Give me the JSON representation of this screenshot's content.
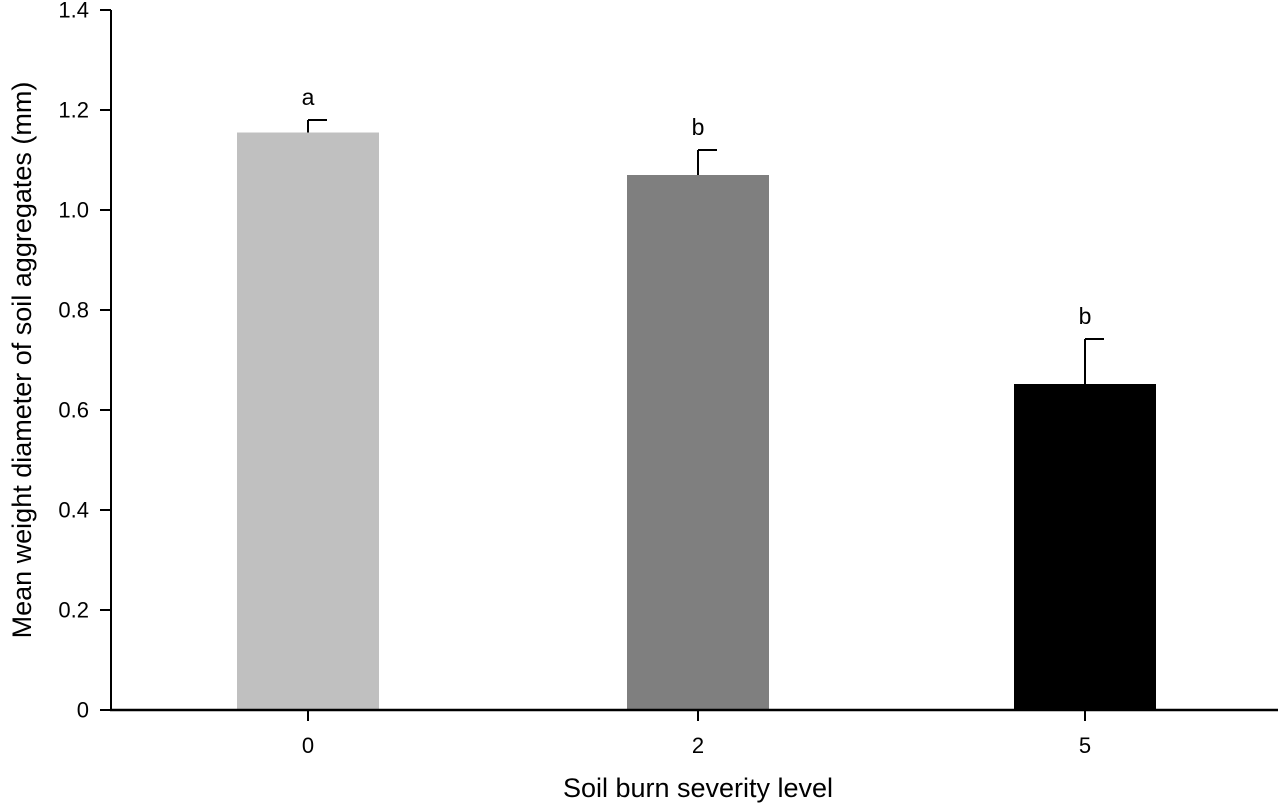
{
  "chart_data": {
    "type": "bar",
    "categories": [
      "0",
      "2",
      "5"
    ],
    "values": [
      1.155,
      1.07,
      0.652
    ],
    "errors": [
      0.025,
      0.05,
      0.09
    ],
    "significance_labels": [
      "a",
      "b",
      "b"
    ],
    "bar_colors": [
      "#c0c0c0",
      "#7f7f7f",
      "#000000"
    ],
    "xlabel": "Soil burn severity level",
    "ylabel": "Mean weight diameter of soil aggregates (mm)",
    "ylim": [
      0,
      1.4
    ],
    "yticks": [
      "0",
      "0.2",
      "0.4",
      "0.6",
      "0.8",
      "1.0",
      "1.2",
      "1.4"
    ],
    "grid": false,
    "legend": "none"
  }
}
